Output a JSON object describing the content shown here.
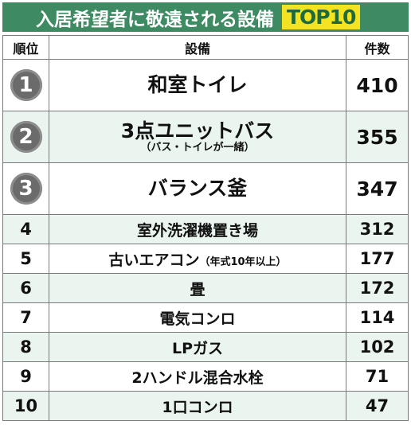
{
  "banner": {
    "title": "入居希望者に敬遠される設備",
    "badge": "TOP10"
  },
  "headers": {
    "rank": "順位",
    "equipment": "設備",
    "count": "件数"
  },
  "rows": [
    {
      "rank": "1",
      "name": "和室トイレ",
      "note": "",
      "count": "410"
    },
    {
      "rank": "2",
      "name": "3点ユニットバス",
      "note": "（バス・トイレが一緒）",
      "count": "355"
    },
    {
      "rank": "3",
      "name": "バランス釜",
      "note": "",
      "count": "347"
    },
    {
      "rank": "4",
      "name": "室外洗濯機置き場",
      "note": "",
      "count": "312"
    },
    {
      "rank": "5",
      "name": "古いエアコン",
      "note": "（年式10年以上）",
      "count": "177"
    },
    {
      "rank": "6",
      "name": "畳",
      "note": "",
      "count": "172"
    },
    {
      "rank": "7",
      "name": "電気コンロ",
      "note": "",
      "count": "114"
    },
    {
      "rank": "8",
      "name": "LPガス",
      "note": "",
      "count": "102"
    },
    {
      "rank": "9",
      "name": "2ハンドル混合水栓",
      "note": "",
      "count": "71"
    },
    {
      "rank": "10",
      "name": "1口コンロ",
      "note": "",
      "count": "47"
    }
  ],
  "colors": {
    "banner": "#3d8a63",
    "badge": "#f3e321",
    "row_alt": "#ebf5ef",
    "medal": "#6b6b6b"
  }
}
